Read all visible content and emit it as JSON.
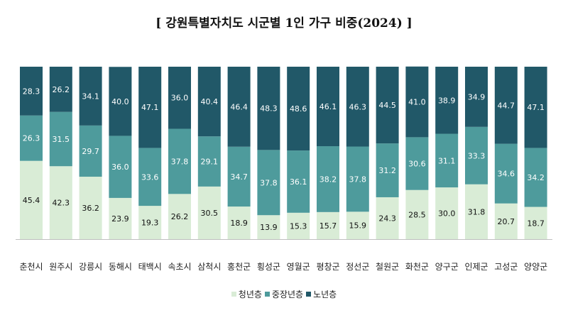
{
  "chart_data": {
    "type": "bar",
    "stacked": true,
    "percent": true,
    "title": "[ 강원특별자치도 시군별 1인 가구 비중(2024) ]",
    "categories": [
      "춘천시",
      "원주시",
      "강릉시",
      "동해시",
      "태백시",
      "속초시",
      "삼척시",
      "홍천군",
      "횡성군",
      "영월군",
      "평창군",
      "정선군",
      "철원군",
      "화천군",
      "양구군",
      "인제군",
      "고성군",
      "양양군"
    ],
    "series": [
      {
        "name": "청년층",
        "color": "#d9ecd6",
        "values": [
          45.4,
          42.3,
          36.2,
          23.9,
          19.3,
          26.2,
          30.5,
          18.9,
          13.9,
          15.3,
          15.7,
          15.9,
          24.3,
          28.5,
          30.0,
          31.8,
          20.7,
          18.7
        ]
      },
      {
        "name": "중장년층",
        "color": "#4e9b9c",
        "values": [
          26.3,
          31.5,
          29.7,
          36.0,
          33.6,
          37.8,
          29.1,
          34.7,
          37.8,
          36.1,
          38.2,
          37.8,
          31.2,
          30.6,
          31.1,
          33.3,
          34.6,
          34.2
        ]
      },
      {
        "name": "노년층",
        "color": "#215868",
        "values": [
          28.3,
          26.2,
          34.1,
          40.0,
          47.1,
          36.0,
          40.4,
          46.4,
          48.3,
          48.6,
          46.1,
          46.3,
          44.5,
          41.0,
          38.9,
          34.9,
          44.7,
          47.1
        ]
      }
    ],
    "labels": [
      [
        "45.4",
        "42.3",
        "36.2",
        "23.9",
        "19.3",
        "26.2",
        "30.5",
        "18.9",
        "13.9",
        "15.3",
        "15.7",
        "15.9",
        "24.3",
        "28.5",
        "30.0",
        "31.8",
        "20.7",
        "18.7"
      ],
      [
        "26.3",
        "31.5",
        "29.7",
        "36.0",
        "33.6",
        "37.8",
        "29.1",
        "34.7",
        "37.8",
        "36.1",
        "38.2",
        "37.8",
        "31.2",
        "30.6",
        "31.1",
        "33.3",
        "34.6",
        "34.2"
      ],
      [
        "28.3",
        "26.2",
        "34.1",
        "40.0",
        "47.1",
        "36.0",
        "40.4",
        "46.4",
        "48.3",
        "48.6",
        "46.1",
        "46.3",
        "44.5",
        "41.0",
        "38.9",
        "34.9",
        "44.7",
        "47.1"
      ]
    ],
    "ylim": [
      0,
      100
    ],
    "grid": false,
    "legend_position": "bottom",
    "label_colors": {
      "light": "#111111",
      "dark": "#ffffff"
    },
    "axis_color": "#bfbfbf"
  }
}
